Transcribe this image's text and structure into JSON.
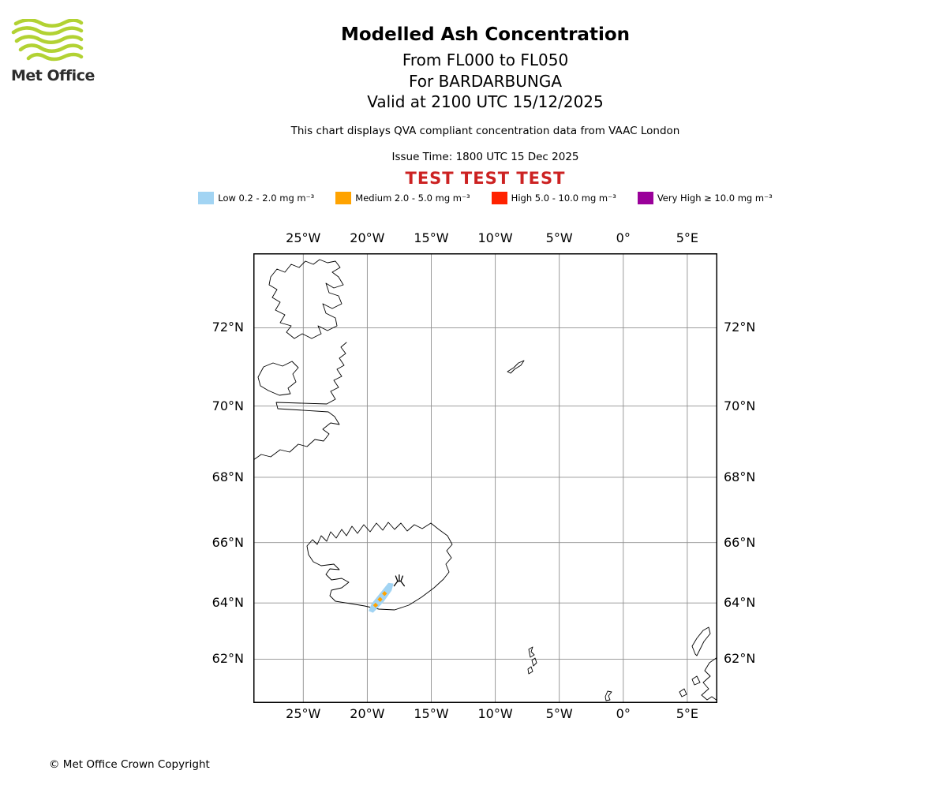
{
  "header": {
    "logo_text": "Met Office",
    "title": "Modelled Ash Concentration",
    "subtitle_fl": "From FL000 to FL050",
    "subtitle_volcano": "For BARDARBUNGA",
    "subtitle_valid": "Valid at 2100 UTC 15/12/2025",
    "note": "This chart displays QVA compliant concentration data from VAAC London",
    "issue_time": "Issue Time: 1800 UTC 15 Dec 2025",
    "test_banner": "TEST TEST TEST"
  },
  "colors": {
    "test_banner": "#cc2222",
    "logo_green": "#b2d233",
    "grid": "#8f8f8f"
  },
  "legend": {
    "items": [
      {
        "level": "low",
        "label": "Low 0.2 - 2.0 mg m⁻³",
        "color": "#a2d4f3"
      },
      {
        "level": "medium",
        "label": "Medium 2.0 - 5.0 mg m⁻³",
        "color": "#ffa300"
      },
      {
        "level": "high",
        "label": "High 5.0 - 10.0 mg m⁻³",
        "color": "#ff2200"
      },
      {
        "level": "very-high",
        "label": "Very High ≥ 10.0 mg m⁻³",
        "color": "#9a009a"
      }
    ]
  },
  "chart_data": {
    "type": "map",
    "title": "Modelled Ash Concentration",
    "projection": "mercator",
    "grid": true,
    "lon_range": [
      -28.9,
      7.35
    ],
    "lat_range": [
      60.34,
      73.72
    ],
    "lon_ticks": [
      {
        "value": -25,
        "label": "25°W"
      },
      {
        "value": -20,
        "label": "20°W"
      },
      {
        "value": -15,
        "label": "15°W"
      },
      {
        "value": -10,
        "label": "10°W"
      },
      {
        "value": -5,
        "label": "5°W"
      },
      {
        "value": 0,
        "label": "0°"
      },
      {
        "value": 5,
        "label": "5°E"
      }
    ],
    "lat_ticks": [
      {
        "value": 72,
        "label": "72°N"
      },
      {
        "value": 70,
        "label": "70°N"
      },
      {
        "value": 68,
        "label": "68°N"
      },
      {
        "value": 66,
        "label": "66°N"
      },
      {
        "value": 64,
        "label": "64°N"
      },
      {
        "value": 62,
        "label": "62°N"
      }
    ],
    "volcano": {
      "name": "BARDARBUNGA",
      "lon": -17.5,
      "lat": 64.75
    },
    "ash_cloud": {
      "flight_levels": "FL000 to FL050",
      "valid_time": "2100 UTC 15/12/2025",
      "low_polygon_lonlat": [
        [
          -19.9,
          63.72
        ],
        [
          -19.55,
          63.66
        ],
        [
          -18.75,
          64.02
        ],
        [
          -18.1,
          64.42
        ],
        [
          -17.95,
          64.66
        ],
        [
          -18.35,
          64.68
        ],
        [
          -19.0,
          64.33
        ],
        [
          -19.65,
          63.98
        ]
      ],
      "medium_points_lonlat": [
        [
          -19.35,
          63.92
        ],
        [
          -19.0,
          64.12
        ],
        [
          -18.65,
          64.32
        ]
      ]
    }
  },
  "footer": {
    "copyright": "© Met Office Crown Copyright"
  }
}
